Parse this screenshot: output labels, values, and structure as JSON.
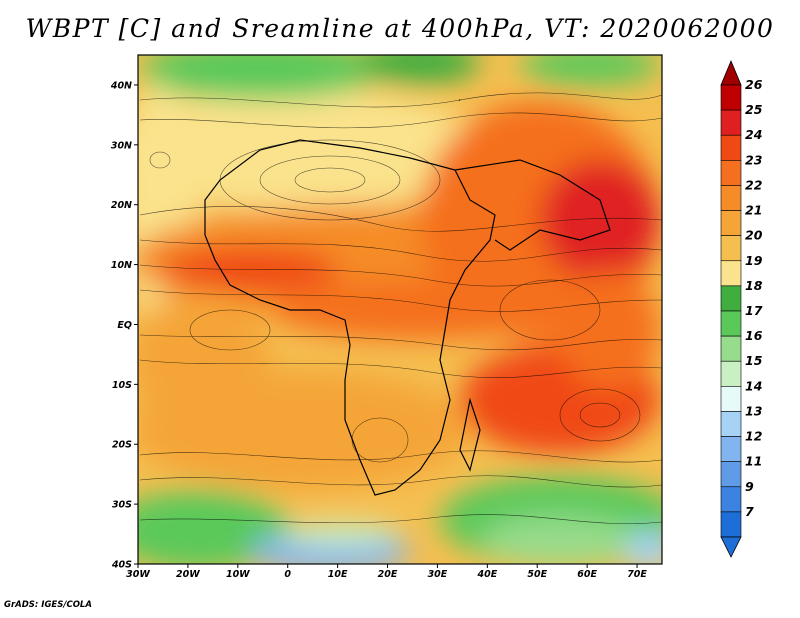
{
  "title": "WBPT [C] and Sreamline at 400hPa, VT: 2020062000",
  "credit": "GrADS: IGES/COLA",
  "map": {
    "lon_range": [
      -30,
      75
    ],
    "lat_range": [
      -40,
      45
    ],
    "lat_labels": [
      "40N",
      "30N",
      "20N",
      "10N",
      "EQ",
      "10S",
      "20S",
      "30S",
      "40S"
    ],
    "lon_labels": [
      "30W",
      "20W",
      "10W",
      "0",
      "10E",
      "20E",
      "30E",
      "40E",
      "50E",
      "60E",
      "70E"
    ],
    "variable": "Wet-bulb potential temperature (WBPT) with streamlines",
    "level": "400hPa"
  },
  "colorbar": {
    "labels": [
      "26",
      "25",
      "24",
      "23",
      "22",
      "21",
      "20",
      "19",
      "18",
      "17",
      "16",
      "15",
      "14",
      "13",
      "12",
      "11",
      "9",
      "7"
    ],
    "colors": [
      "#c00000",
      "#e02020",
      "#f04a14",
      "#f5701e",
      "#f58c28",
      "#f5a537",
      "#f5bf50",
      "#fae38c",
      "#3fae3f",
      "#5ac95a",
      "#96dc8c",
      "#c8f0c3",
      "#e6fafa",
      "#a5d2f5",
      "#82b4f0",
      "#5f9be6",
      "#3c82e1",
      "#1e6ed7"
    ],
    "top_arrow_color": "#a00000",
    "bottom_arrow_color": "#1e6ed7"
  }
}
